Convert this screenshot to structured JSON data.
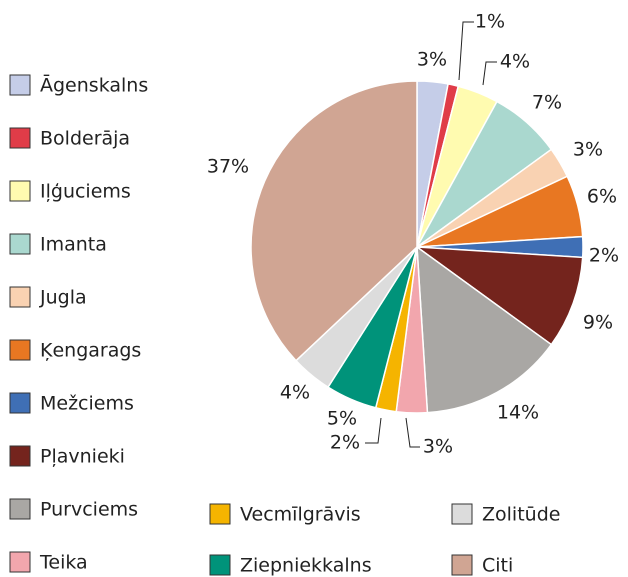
{
  "chart_data": {
    "type": "pie",
    "categories": [
      "Āgenskalns",
      "Bolderāja",
      "Iļģuciems",
      "Imanta",
      "Jugla",
      "Ķengarags",
      "Mežciems",
      "Pļavnieki",
      "Purvciems",
      "Teika",
      "Vecmīlgrāvis",
      "Ziepniekkalns",
      "Zolitūde",
      "Citi"
    ],
    "values": [
      3,
      1,
      4,
      7,
      3,
      6,
      2,
      9,
      14,
      3,
      2,
      5,
      4,
      37
    ],
    "value_labels": [
      "3%",
      "1%",
      "4%",
      "7%",
      "3%",
      "6%",
      "2%",
      "9%",
      "14%",
      "3%",
      "2%",
      "5%",
      "4%",
      "37%"
    ],
    "colors": [
      "#c5cde8",
      "#e03c48",
      "#fffbb0",
      "#aad8cf",
      "#f9d2b2",
      "#e87722",
      "#3f6fb5",
      "#74241d",
      "#a9a7a4",
      "#f2a6ad",
      "#f5b400",
      "#00937a",
      "#dcdcdc",
      "#d0a593"
    ],
    "legend": "left"
  }
}
